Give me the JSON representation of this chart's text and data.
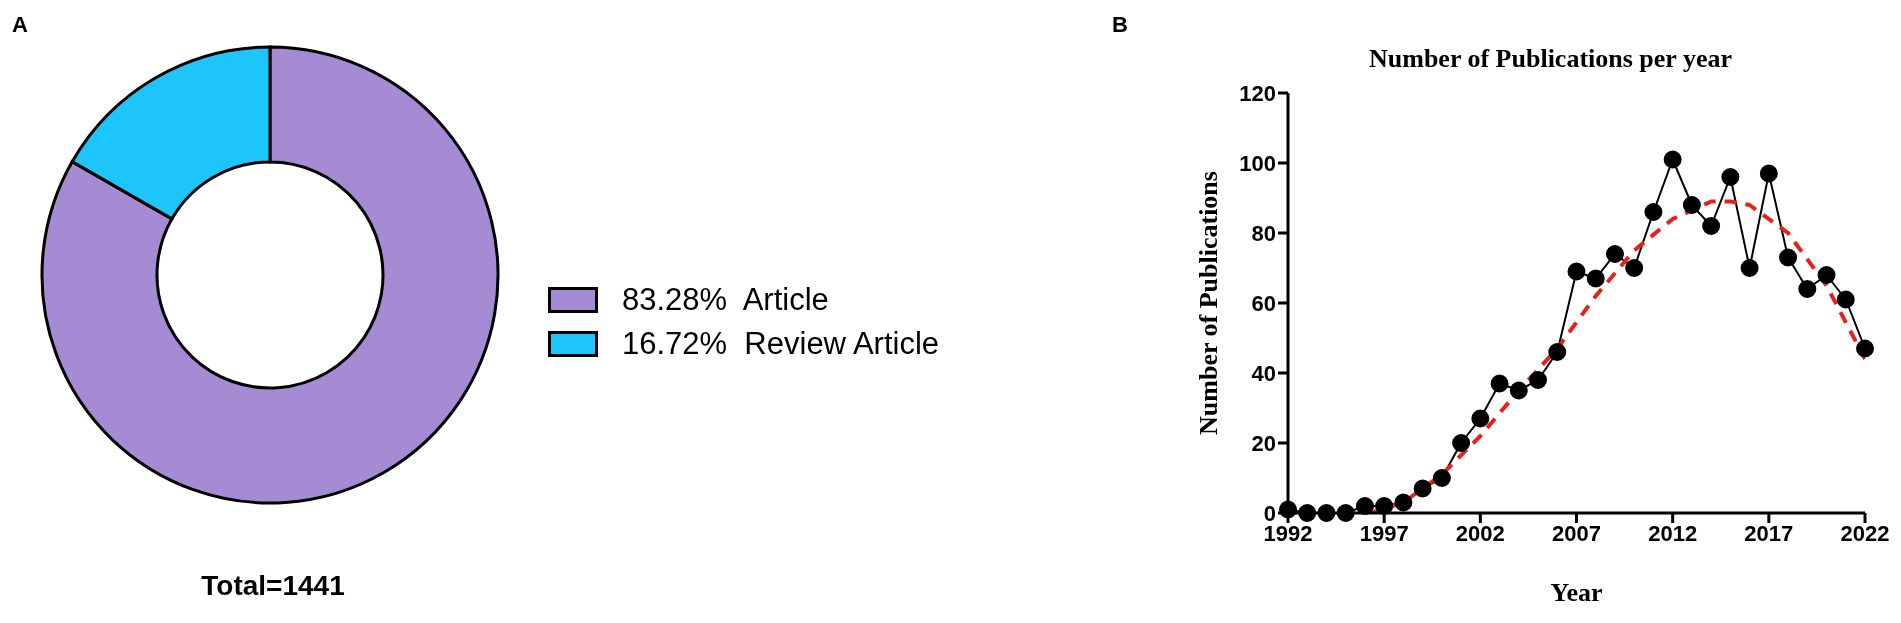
{
  "chart_data": [
    {
      "type": "donut",
      "annotations": [
        "A",
        "Total=1441"
      ],
      "categories": [
        "Article",
        "Review Article"
      ],
      "values": [
        83.28,
        16.72
      ],
      "value_labels": [
        "83.28%",
        "16.72%"
      ],
      "colors": [
        "#a48bd3",
        "#1ec5fb"
      ],
      "legend": "right"
    },
    {
      "type": "line",
      "annotations": [
        "B"
      ],
      "title": "Number of Publications per year",
      "xlabel": "Year",
      "ylabel": "Number of Publications",
      "xlim": [
        1992,
        2022
      ],
      "xticks": [
        1992,
        1997,
        2002,
        2007,
        2012,
        2017,
        2022
      ],
      "ylim": [
        0,
        120
      ],
      "yticks": [
        0,
        20,
        40,
        60,
        80,
        100,
        120
      ],
      "grid": false,
      "legend": false,
      "series": [
        {
          "color": "#000000",
          "marker": "circle",
          "line_style": "solid",
          "x": [
            1992,
            1993,
            1994,
            1995,
            1996,
            1997,
            1998,
            1999,
            2000,
            2001,
            2002,
            2003,
            2004,
            2005,
            2006,
            2007,
            2008,
            2009,
            2010,
            2011,
            2012,
            2013,
            2014,
            2015,
            2016,
            2017,
            2018,
            2019,
            2020,
            2021,
            2022
          ],
          "values": [
            1,
            0,
            0,
            0,
            2,
            2,
            3,
            7,
            10,
            20,
            27,
            37,
            35,
            38,
            46,
            69,
            67,
            74,
            70,
            86,
            101,
            88,
            82,
            96,
            70,
            97,
            73,
            64,
            68,
            61,
            47
          ]
        },
        {
          "type": "line",
          "color": "#e8201c",
          "marker": "none",
          "line_style": "dashed",
          "x": [
            1996.3,
            1998,
            2000,
            2002,
            2004,
            2006,
            2008,
            2010,
            2012,
            2014,
            2015,
            2016,
            2018,
            2020,
            2022
          ],
          "values": [
            0,
            3,
            11,
            22,
            35,
            47,
            62,
            75,
            84,
            89,
            89,
            88,
            80,
            65,
            44
          ]
        }
      ]
    }
  ]
}
